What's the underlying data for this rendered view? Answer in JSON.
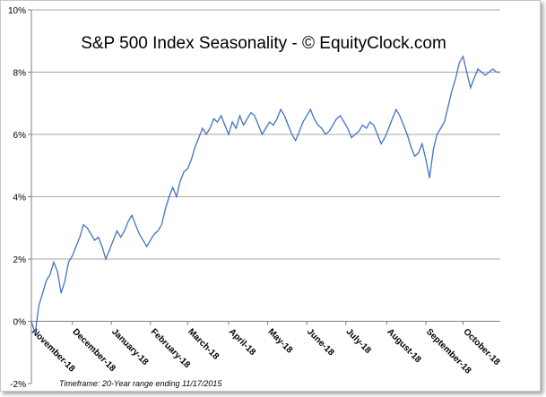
{
  "chart_data": {
    "type": "line",
    "title": "S&P 500 Index Seasonality - © EquityClock.com",
    "footnote": "Timeframe: 20-Year range ending 11/17/2015",
    "ylim": [
      -2,
      10
    ],
    "y_ticks": [
      "-2%",
      "0%",
      "2%",
      "4%",
      "6%",
      "8%",
      "10%"
    ],
    "y_tick_values": [
      -2,
      0,
      2,
      4,
      6,
      8,
      10
    ],
    "grid": true,
    "legend": "none",
    "line_color": "#4472c4",
    "x_ticks": [
      "November-18",
      "December-18",
      "January-18",
      "February-18",
      "March-18",
      "April-18",
      "May-18",
      "June-18",
      "July-18",
      "August-18",
      "September-18",
      "October-18"
    ],
    "x_tick_positions": [
      0,
      22,
      43,
      64,
      84,
      106,
      127,
      148,
      169,
      191,
      212,
      232
    ],
    "x": [
      0,
      2,
      4,
      6,
      8,
      10,
      12,
      14,
      16,
      18,
      20,
      22,
      24,
      26,
      28,
      30,
      32,
      34,
      36,
      38,
      40,
      42,
      44,
      46,
      48,
      50,
      52,
      54,
      56,
      58,
      60,
      62,
      64,
      66,
      68,
      70,
      72,
      74,
      76,
      78,
      80,
      82,
      84,
      86,
      88,
      90,
      92,
      94,
      96,
      98,
      100,
      102,
      104,
      106,
      108,
      110,
      112,
      114,
      116,
      118,
      120,
      122,
      124,
      126,
      128,
      130,
      132,
      134,
      136,
      138,
      140,
      142,
      144,
      146,
      148,
      150,
      152,
      154,
      156,
      158,
      160,
      162,
      164,
      166,
      168,
      170,
      172,
      174,
      176,
      178,
      180,
      182,
      184,
      186,
      188,
      190,
      192,
      194,
      196,
      198,
      200,
      202,
      204,
      206,
      208,
      210,
      212,
      214,
      216,
      218,
      220,
      222,
      224,
      226,
      228,
      230,
      232,
      234,
      236,
      238,
      240,
      242,
      244,
      246,
      248,
      250,
      252
    ],
    "values": [
      0.0,
      -0.4,
      0.5,
      0.9,
      1.3,
      1.5,
      1.9,
      1.6,
      0.9,
      1.3,
      1.9,
      2.1,
      2.4,
      2.7,
      3.1,
      3.0,
      2.8,
      2.6,
      2.7,
      2.4,
      2.0,
      2.3,
      2.6,
      2.9,
      2.7,
      2.9,
      3.2,
      3.4,
      3.1,
      2.8,
      2.6,
      2.4,
      2.6,
      2.8,
      2.9,
      3.1,
      3.6,
      4.0,
      4.3,
      4.0,
      4.5,
      4.8,
      4.9,
      5.2,
      5.6,
      5.9,
      6.2,
      6.0,
      6.2,
      6.5,
      6.4,
      6.6,
      6.3,
      6.0,
      6.4,
      6.2,
      6.6,
      6.3,
      6.5,
      6.7,
      6.6,
      6.3,
      6.0,
      6.2,
      6.4,
      6.3,
      6.5,
      6.8,
      6.6,
      6.3,
      6.0,
      5.8,
      6.1,
      6.4,
      6.6,
      6.8,
      6.5,
      6.3,
      6.2,
      6.0,
      6.1,
      6.3,
      6.5,
      6.6,
      6.4,
      6.2,
      5.9,
      6.0,
      6.1,
      6.3,
      6.2,
      6.4,
      6.3,
      6.0,
      5.7,
      5.9,
      6.2,
      6.5,
      6.8,
      6.6,
      6.3,
      6.0,
      5.6,
      5.3,
      5.4,
      5.7,
      5.2,
      4.6,
      5.5,
      6.0,
      6.2,
      6.4,
      6.9,
      7.4,
      7.8,
      8.3,
      8.5,
      8.0,
      7.5,
      7.8,
      8.1,
      8.0,
      7.9,
      8.0,
      8.1,
      8.0,
      8.0
    ]
  }
}
